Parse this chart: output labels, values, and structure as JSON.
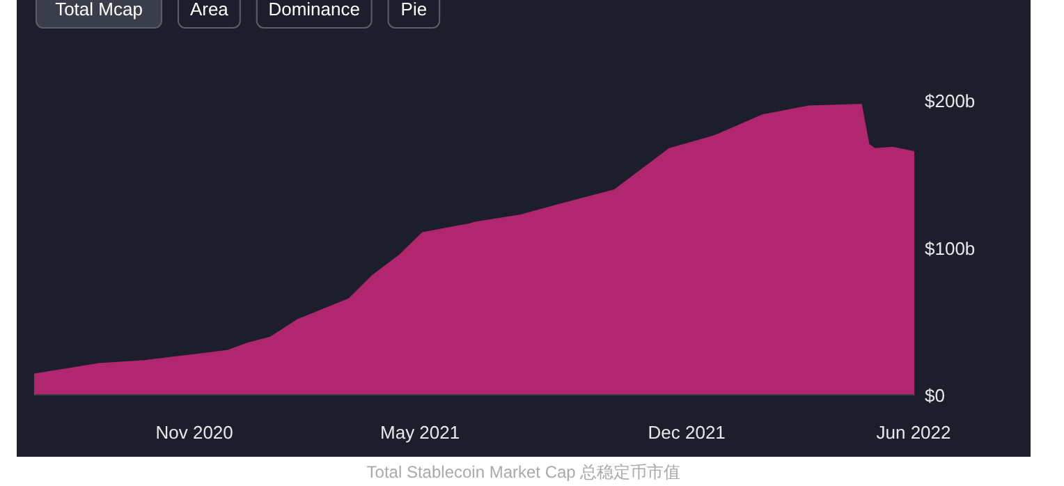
{
  "chart_data": {
    "type": "area",
    "title": "Total Stablecoin Market Cap 总稳定币市值",
    "annotations": [
      "Total Mcap",
      "Area",
      "Dominance",
      "Pie"
    ],
    "x": [
      "2020-06-26",
      "2020-08-16",
      "2020-09-22",
      "2020-10-30",
      "2020-11-28",
      "2020-12-14",
      "2021-01-01",
      "2021-01-23",
      "2021-03-05",
      "2021-03-24",
      "2021-04-15",
      "2021-05-03",
      "2021-05-22",
      "2021-06-10",
      "2021-06-14",
      "2021-07-21",
      "2021-08-20",
      "2021-10-04",
      "2021-11-17",
      "2021-12-24",
      "2022-01-31",
      "2022-03-09",
      "2022-04-20",
      "2022-04-26",
      "2022-05-01",
      "2022-05-15",
      "2022-06-01"
    ],
    "series": [
      {
        "color": "#b0266f",
        "values": [
          14,
          21,
          23,
          27,
          30,
          35,
          39,
          51,
          65,
          81,
          95,
          110,
          113,
          116,
          117,
          122,
          129,
          139,
          167,
          176,
          190,
          196,
          197,
          170,
          167,
          168,
          165
        ]
      }
    ],
    "xlim": [
      "2020-06-26",
      "2022-06-01"
    ],
    "xticks": [
      {
        "value": "2020-11-01",
        "label": "Nov 2020"
      },
      {
        "value": "2021-05-01",
        "label": "May 2021"
      },
      {
        "value": "2021-12-01",
        "label": "Dec 2021"
      },
      {
        "value": "2022-06-01",
        "label": "Jun 2022"
      }
    ],
    "ylim": [
      0,
      200
    ],
    "yticks": [
      {
        "value": 0,
        "label": "$0"
      },
      {
        "value": 100,
        "label": "$100b"
      },
      {
        "value": 200,
        "label": "$200b"
      }
    ],
    "grid": false
  }
}
